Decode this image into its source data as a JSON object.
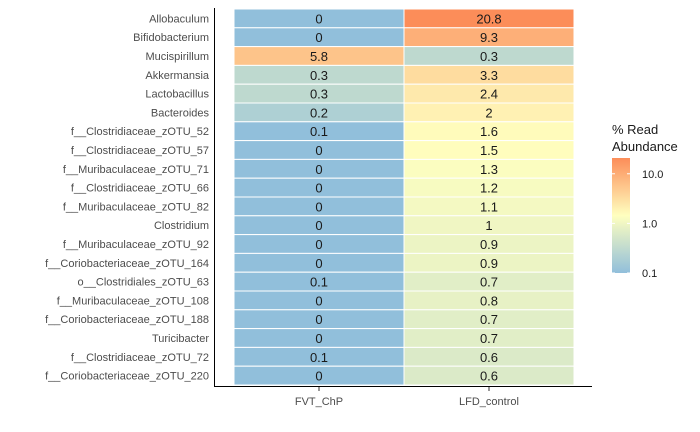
{
  "chart_data": {
    "type": "heatmap",
    "columns": [
      "FVT_ChP",
      "LFD_control"
    ],
    "rows": [
      {
        "label": "Allobaculum",
        "values": [
          0,
          20.8
        ]
      },
      {
        "label": "Bifidobacterium",
        "values": [
          0,
          9.3
        ]
      },
      {
        "label": "Mucispirillum",
        "values": [
          5.8,
          0.3
        ]
      },
      {
        "label": "Akkermansia",
        "values": [
          0.3,
          3.3
        ]
      },
      {
        "label": "Lactobacillus",
        "values": [
          0.3,
          2.4
        ]
      },
      {
        "label": "Bacteroides",
        "values": [
          0.2,
          2
        ]
      },
      {
        "label": "f__Clostridiaceae_zOTU_52",
        "values": [
          0.1,
          1.6
        ]
      },
      {
        "label": "f__Clostridiaceae_zOTU_57",
        "values": [
          0,
          1.5
        ]
      },
      {
        "label": "f__Muribaculaceae_zOTU_71",
        "values": [
          0,
          1.3
        ]
      },
      {
        "label": "f__Clostridiaceae_zOTU_66",
        "values": [
          0,
          1.2
        ]
      },
      {
        "label": "f__Muribaculaceae_zOTU_82",
        "values": [
          0,
          1.1
        ]
      },
      {
        "label": "Clostridium",
        "values": [
          0,
          1
        ]
      },
      {
        "label": "f__Muribaculaceae_zOTU_92",
        "values": [
          0,
          0.9
        ]
      },
      {
        "label": "f__Coriobacteriaceae_zOTU_164",
        "values": [
          0,
          0.9
        ]
      },
      {
        "label": "o__Clostridiales_zOTU_63",
        "values": [
          0.1,
          0.7
        ]
      },
      {
        "label": "f__Muribaculaceae_zOTU_108",
        "values": [
          0,
          0.8
        ]
      },
      {
        "label": "f__Coriobacteriaceae_zOTU_188",
        "values": [
          0,
          0.7
        ]
      },
      {
        "label": "Turicibacter",
        "values": [
          0,
          0.7
        ]
      },
      {
        "label": "f__Clostridiaceae_zOTU_72",
        "values": [
          0.1,
          0.6
        ]
      },
      {
        "label": "f__Coriobacteriaceae_zOTU_220",
        "values": [
          0,
          0.6
        ]
      }
    ],
    "color_scale": {
      "scale": "log10",
      "domain": [
        0.1,
        20.8
      ],
      "stops": [
        "#91bfdb",
        "#ffffbf",
        "#fc8d59"
      ],
      "na_color": "#91bfdb"
    },
    "legend": {
      "title_line1": "% Read",
      "title_line2": "Abundance",
      "ticks": [
        {
          "value": 0.1,
          "label": "0.1"
        },
        {
          "value": 1,
          "label": "1.0"
        },
        {
          "value": 10,
          "label": "10.0"
        }
      ],
      "position": "right"
    },
    "grid": false
  }
}
